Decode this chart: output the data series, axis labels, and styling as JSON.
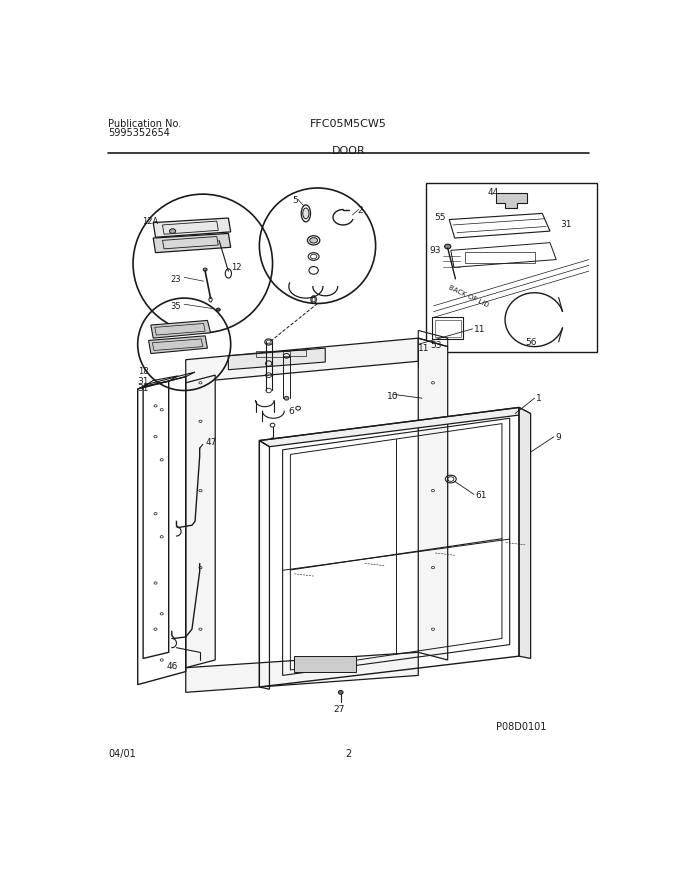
{
  "title_left_line1": "Publication No.",
  "title_left_line2": "5995352654",
  "title_center": "FFC05M5CW5",
  "section_title": "DOOR",
  "footer_left": "04/01",
  "footer_center": "2",
  "footer_right": "P08D0101",
  "bg_color": "#ffffff",
  "line_color": "#1a1a1a",
  "fig_width": 6.8,
  "fig_height": 8.8,
  "dpi": 100
}
